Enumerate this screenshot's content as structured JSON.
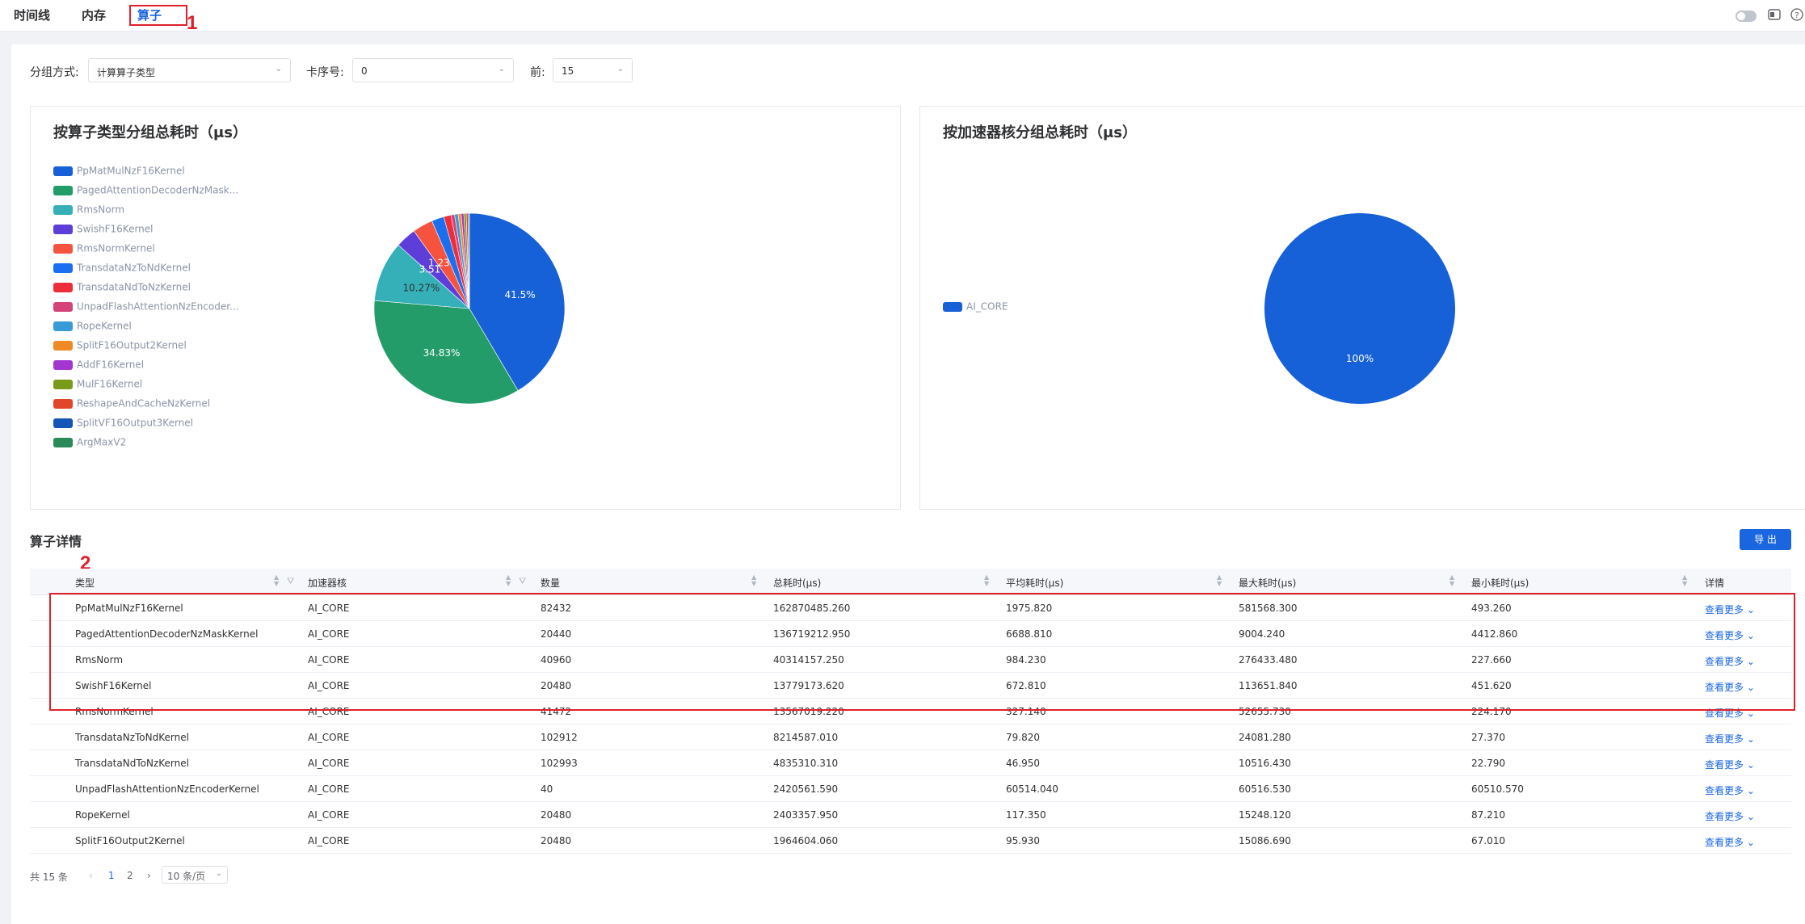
{
  "tabs": [
    {
      "label": "时间线"
    },
    {
      "label": "内存"
    },
    {
      "label": "算子"
    }
  ],
  "annotations": {
    "label1": "1",
    "label2": "2"
  },
  "filters": {
    "group_label": "分组方式:",
    "group_value": "计算算子类型",
    "card_label": "卡序号:",
    "card_value": "0",
    "top_label": "前:",
    "top_value": "15"
  },
  "chart_left": {
    "title": "按算子类型分组总耗时（μs）",
    "legend": [
      {
        "name": "PpMatMulNzF16Kernel",
        "color": "#1660d8"
      },
      {
        "name": "PagedAttentionDecoderNzMask...",
        "color": "#249c6a"
      },
      {
        "name": "RmsNorm",
        "color": "#35b0b8"
      },
      {
        "name": "SwishF16Kernel",
        "color": "#5d3ed8"
      },
      {
        "name": "RmsNormKernel",
        "color": "#f5533d"
      },
      {
        "name": "TransdataNzToNdKernel",
        "color": "#1a6ef0"
      },
      {
        "name": "TransdataNdToNzKernel",
        "color": "#ee2d3a"
      },
      {
        "name": "UnpadFlashAttentionNzEncoder...",
        "color": "#d4447a"
      },
      {
        "name": "RopeKernel",
        "color": "#3a9ad8"
      },
      {
        "name": "SplitF16Output2Kernel",
        "color": "#f08a24"
      },
      {
        "name": "AddF16Kernel",
        "color": "#a336d0"
      },
      {
        "name": "MulF16Kernel",
        "color": "#7a9a1a"
      },
      {
        "name": "ReshapeAndCacheNzKernel",
        "color": "#e2462a"
      },
      {
        "name": "SplitVF16Output3Kernel",
        "color": "#1456b8"
      },
      {
        "name": "ArgMaxV2",
        "color": "#2a8a5a"
      }
    ],
    "slice_labels": [
      "41.5%",
      "34.83%",
      "10.27%",
      "3.51%",
      "1.23%"
    ]
  },
  "chart_right": {
    "title": "按加速器核分组总耗时（μs）",
    "legend": [
      {
        "name": "AI_CORE",
        "color": "#1660d8"
      }
    ],
    "slice_labels": [
      "100%"
    ]
  },
  "chart_data": [
    {
      "type": "pie",
      "title": "按算子类型分组总耗时（μs）",
      "categories": [
        "PpMatMulNzF16Kernel",
        "PagedAttentionDecoderNzMaskKernel",
        "RmsNorm",
        "SwishF16Kernel",
        "RmsNormKernel",
        "TransdataNzToNdKernel",
        "TransdataNdToNzKernel",
        "UnpadFlashAttentionNzEncoderKernel",
        "RopeKernel",
        "SplitF16Output2Kernel",
        "AddF16Kernel",
        "MulF16Kernel",
        "ReshapeAndCacheNzKernel",
        "SplitVF16Output3Kernel",
        "ArgMaxV2"
      ],
      "values": [
        41.5,
        34.83,
        10.27,
        3.51,
        3.45,
        2.09,
        1.23,
        0.62,
        0.61,
        0.5,
        0.45,
        0.4,
        0.3,
        0.2,
        0.04
      ],
      "legend": "left"
    },
    {
      "type": "pie",
      "title": "按加速器核分组总耗时（μs）",
      "categories": [
        "AI_CORE"
      ],
      "values": [
        100
      ],
      "legend": "left"
    }
  ],
  "section": {
    "title": "算子详情",
    "export": "导 出"
  },
  "table": {
    "headers": [
      "类型",
      "加速器核",
      "数量",
      "总耗时(μs)",
      "平均耗时(μs)",
      "最大耗时(μs)",
      "最小耗时(μs)",
      "详情"
    ],
    "more_label": "查看更多",
    "rows": [
      [
        "PpMatMulNzF16Kernel",
        "AI_CORE",
        "82432",
        "162870485.260",
        "1975.820",
        "581568.300",
        "493.260"
      ],
      [
        "PagedAttentionDecoderNzMaskKernel",
        "AI_CORE",
        "20440",
        "136719212.950",
        "6688.810",
        "9004.240",
        "4412.860"
      ],
      [
        "RmsNorm",
        "AI_CORE",
        "40960",
        "40314157.250",
        "984.230",
        "276433.480",
        "227.660"
      ],
      [
        "SwishF16Kernel",
        "AI_CORE",
        "20480",
        "13779173.620",
        "672.810",
        "113651.840",
        "451.620"
      ],
      [
        "RmsNormKernel",
        "AI_CORE",
        "41472",
        "13567019.220",
        "327.140",
        "52655.730",
        "224.170"
      ],
      [
        "TransdataNzToNdKernel",
        "AI_CORE",
        "102912",
        "8214587.010",
        "79.820",
        "24081.280",
        "27.370"
      ],
      [
        "TransdataNdToNzKernel",
        "AI_CORE",
        "102993",
        "4835310.310",
        "46.950",
        "10516.430",
        "22.790"
      ],
      [
        "UnpadFlashAttentionNzEncoderKernel",
        "AI_CORE",
        "40",
        "2420561.590",
        "60514.040",
        "60516.530",
        "60510.570"
      ],
      [
        "RopeKernel",
        "AI_CORE",
        "20480",
        "2403357.950",
        "117.350",
        "15248.120",
        "87.210"
      ],
      [
        "SplitF16Output2Kernel",
        "AI_CORE",
        "20480",
        "1964604.060",
        "95.930",
        "15086.690",
        "67.010"
      ]
    ]
  },
  "pagination": {
    "total": "共 15 条",
    "page1": "1",
    "page2": "2",
    "page_size": "10 条/页"
  }
}
